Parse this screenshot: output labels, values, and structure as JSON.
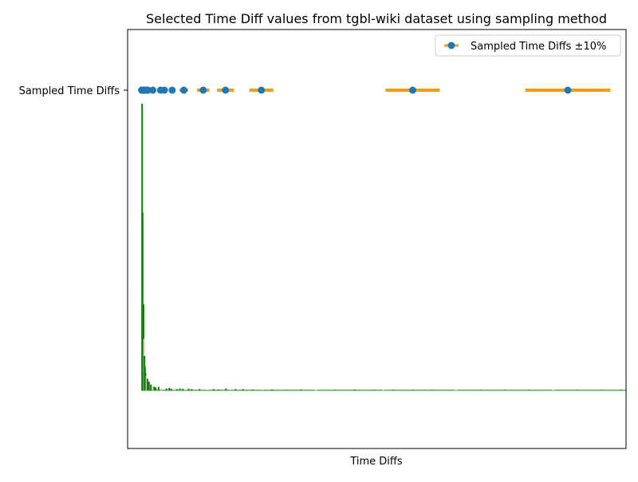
{
  "chart_data": {
    "type": "scatter",
    "title": "Selected Time Diff values from tgbl-wiki dataset using sampling method",
    "xlabel": "Time Diffs",
    "ylabel": "",
    "y_tick_labels": [
      "Sampled Time Diffs"
    ],
    "grid": false,
    "legend": {
      "position": "top-right",
      "entries": [
        "Sampled Time Diffs ±10%"
      ]
    },
    "x_axis": {
      "min": 0,
      "max": 1000,
      "ticks_shown": false,
      "units": "unlabeled relative scale (approx.)"
    },
    "error_fraction": 0.1,
    "series": [
      {
        "name": "Sampled Time Diffs ±10%",
        "kind": "points-with-x-error",
        "color": "#1f77b4",
        "error_color": "#f0a00e",
        "x": [
          1,
          2,
          3,
          4,
          6,
          7,
          8,
          10,
          12,
          14,
          24,
          40,
          48,
          64,
          88,
          128,
          174,
          248,
          560,
          880
        ]
      },
      {
        "name": "",
        "kind": "distribution-bars",
        "colors": [
          "#008000",
          "#ffc0cb"
        ],
        "x": [
          2,
          3,
          5,
          6,
          7,
          8,
          9,
          11,
          13,
          16,
          20,
          24,
          27,
          30,
          36,
          42,
          52,
          58,
          62,
          68,
          74,
          80,
          86,
          92,
          98,
          104,
          120,
          136,
          150,
          160,
          175,
          185,
          195,
          210,
          230,
          250,
          270,
          300,
          330,
          360,
          400,
          440,
          480,
          500,
          520,
          560,
          600,
          650,
          700,
          750,
          800,
          850,
          900,
          950,
          990
        ],
        "heights": [
          1.0,
          0.62,
          0.3,
          0.18,
          0.12,
          0.08,
          0.06,
          0.05,
          0.04,
          0.03,
          0.02,
          0.015,
          0.012,
          0.01,
          0.012,
          0.008,
          0.006,
          0.008,
          0.005,
          0.006,
          0.004,
          0.006,
          0.005,
          0.004,
          0.005,
          0.004,
          0.004,
          0.003,
          0.004,
          0.003,
          0.006,
          0.005,
          0.004,
          0.004,
          0.003,
          0.003,
          0.003,
          0.002,
          0.003,
          0.002,
          0.002,
          0.003,
          0.002,
          0.002,
          0.002,
          0.002,
          0.002,
          0.002,
          0.002,
          0.002,
          0.002,
          0.002,
          0.002,
          0.002,
          0.002
        ]
      }
    ]
  }
}
